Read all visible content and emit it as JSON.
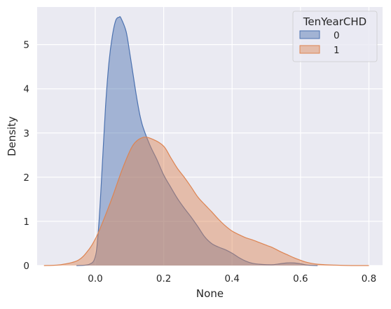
{
  "chart_data": {
    "type": "area",
    "title": "",
    "xlabel": "None",
    "ylabel": "Density",
    "xlim": [
      -0.17,
      0.84
    ],
    "ylim": [
      0,
      5.85
    ],
    "x_ticks": [
      0.0,
      0.2,
      0.4,
      0.6,
      0.8
    ],
    "x_tick_labels": [
      "0.0",
      "0.2",
      "0.4",
      "0.6",
      "0.8"
    ],
    "y_ticks": [
      0,
      1,
      2,
      3,
      4,
      5
    ],
    "y_tick_labels": [
      "0",
      "1",
      "2",
      "3",
      "4",
      "5"
    ],
    "grid": true,
    "background_color": "#eaeaf2",
    "legend": {
      "title": "TenYearCHD",
      "placement": "top-right",
      "entries": [
        "0",
        "1"
      ]
    },
    "series": [
      {
        "name": "0",
        "color": "#4c72b0",
        "x": [
          -0.055,
          -0.02,
          0.0,
          0.01,
          0.02,
          0.03,
          0.04,
          0.05,
          0.06,
          0.07,
          0.075,
          0.09,
          0.1,
          0.11,
          0.12,
          0.13,
          0.14,
          0.16,
          0.18,
          0.2,
          0.22,
          0.24,
          0.26,
          0.28,
          0.3,
          0.32,
          0.34,
          0.36,
          0.38,
          0.4,
          0.42,
          0.44,
          0.46,
          0.48,
          0.5,
          0.52,
          0.54,
          0.56,
          0.58,
          0.6,
          0.62,
          0.65
        ],
        "y": [
          0.0,
          0.02,
          0.2,
          0.9,
          2.2,
          3.6,
          4.6,
          5.2,
          5.55,
          5.62,
          5.6,
          5.3,
          4.85,
          4.35,
          3.85,
          3.42,
          3.12,
          2.72,
          2.4,
          2.05,
          1.78,
          1.52,
          1.3,
          1.1,
          0.88,
          0.65,
          0.5,
          0.42,
          0.36,
          0.28,
          0.18,
          0.1,
          0.05,
          0.03,
          0.02,
          0.02,
          0.04,
          0.06,
          0.06,
          0.04,
          0.01,
          0.0
        ]
      },
      {
        "name": "1",
        "color": "#dd8452",
        "x": [
          -0.15,
          -0.1,
          -0.05,
          -0.02,
          0.0,
          0.02,
          0.05,
          0.08,
          0.11,
          0.14,
          0.17,
          0.2,
          0.22,
          0.24,
          0.26,
          0.28,
          0.3,
          0.32,
          0.34,
          0.36,
          0.38,
          0.4,
          0.42,
          0.44,
          0.46,
          0.48,
          0.5,
          0.52,
          0.54,
          0.56,
          0.58,
          0.6,
          0.62,
          0.65,
          0.7,
          0.75,
          0.8
        ],
        "y": [
          0.0,
          0.02,
          0.12,
          0.35,
          0.6,
          0.95,
          1.55,
          2.2,
          2.72,
          2.9,
          2.85,
          2.7,
          2.45,
          2.2,
          2.0,
          1.78,
          1.55,
          1.38,
          1.22,
          1.05,
          0.9,
          0.78,
          0.7,
          0.63,
          0.58,
          0.52,
          0.46,
          0.4,
          0.32,
          0.25,
          0.18,
          0.12,
          0.07,
          0.03,
          0.01,
          0.0,
          0.0
        ]
      }
    ]
  }
}
